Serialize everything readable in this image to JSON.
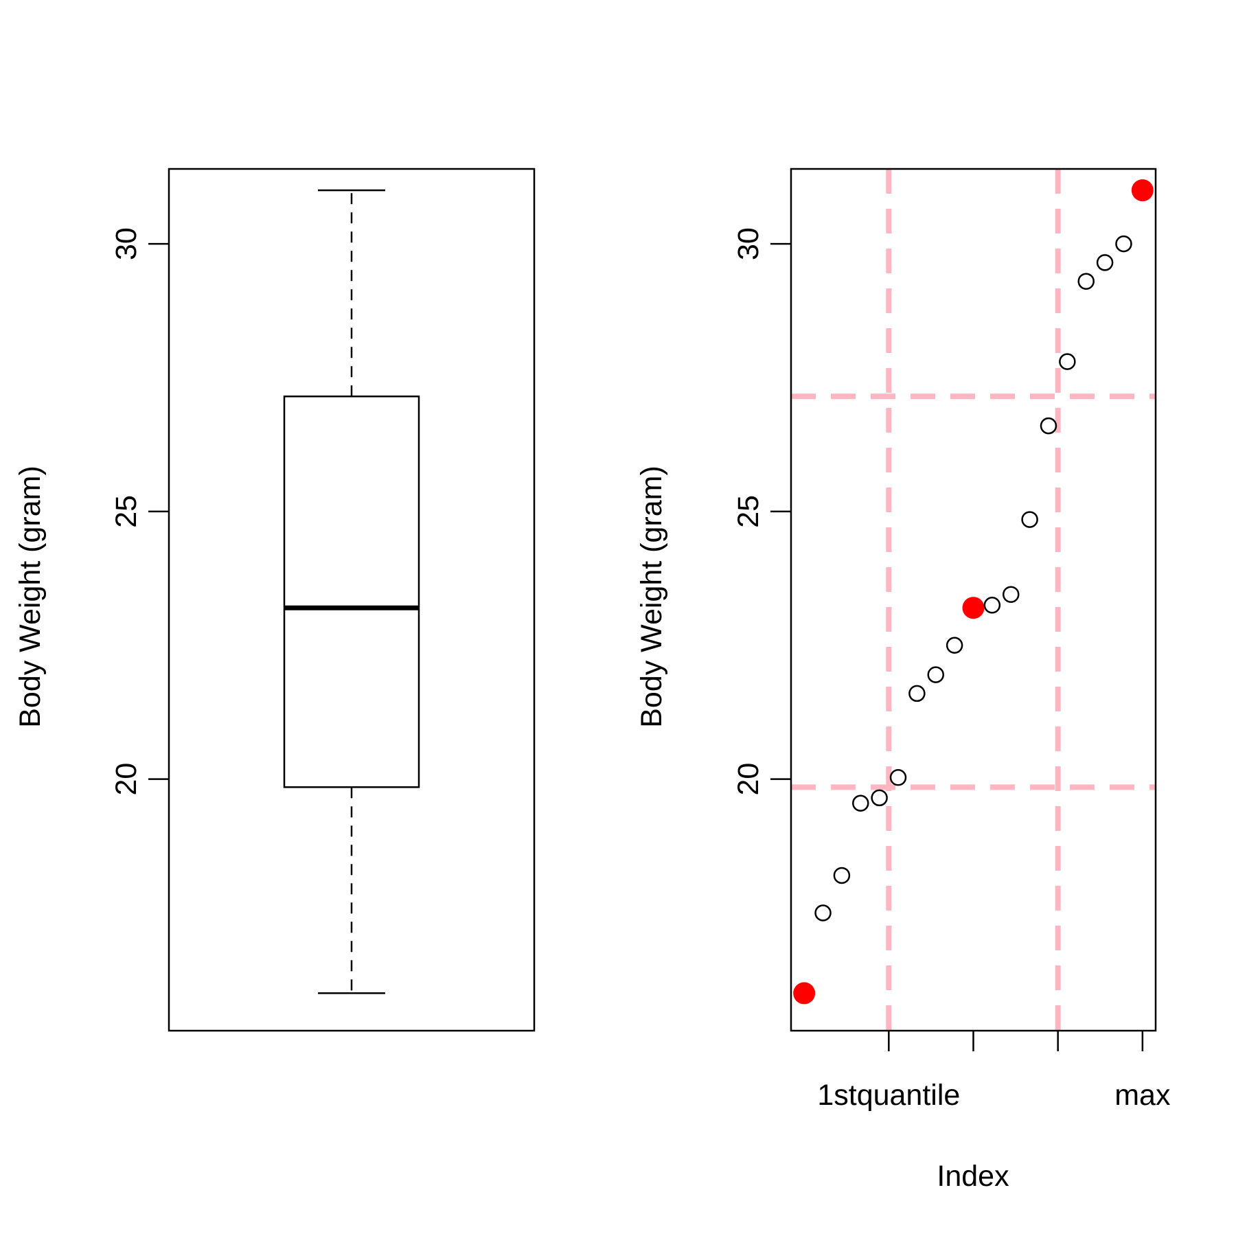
{
  "chart_data": [
    {
      "type": "box",
      "ylabel": "Body Weight (gram)",
      "ylim": [
        15.3,
        31.4
      ],
      "yticks": [
        20,
        25,
        30
      ],
      "box": {
        "min": 16.0,
        "q1": 19.85,
        "median": 23.2,
        "q3": 27.15,
        "max": 31.0
      },
      "colors": {
        "box": "#000000"
      }
    },
    {
      "type": "scatter",
      "ylabel": "Body Weight (gram)",
      "xlabel": "Index",
      "xlim": [
        0.3,
        19.7
      ],
      "ylim": [
        15.3,
        31.4
      ],
      "yticks": [
        20,
        25,
        30
      ],
      "xticks": [
        {
          "value": 5.5,
          "label": "1stquantile"
        },
        {
          "value": 10,
          "label": ""
        },
        {
          "value": 14.5,
          "label": ""
        },
        {
          "value": 19,
          "label": "max"
        }
      ],
      "points": [
        {
          "x": 1,
          "y": 16.0,
          "highlight": true
        },
        {
          "x": 2,
          "y": 17.5,
          "highlight": false
        },
        {
          "x": 3,
          "y": 18.2,
          "highlight": false
        },
        {
          "x": 4,
          "y": 19.55,
          "highlight": false
        },
        {
          "x": 5,
          "y": 19.65,
          "highlight": false
        },
        {
          "x": 6,
          "y": 20.03,
          "highlight": false
        },
        {
          "x": 7,
          "y": 21.6,
          "highlight": false
        },
        {
          "x": 8,
          "y": 21.95,
          "highlight": false
        },
        {
          "x": 9,
          "y": 22.5,
          "highlight": false
        },
        {
          "x": 10,
          "y": 23.2,
          "highlight": true
        },
        {
          "x": 11,
          "y": 23.25,
          "highlight": false
        },
        {
          "x": 12,
          "y": 23.45,
          "highlight": false
        },
        {
          "x": 13,
          "y": 24.85,
          "highlight": false
        },
        {
          "x": 14,
          "y": 26.6,
          "highlight": false
        },
        {
          "x": 15,
          "y": 27.8,
          "highlight": false
        },
        {
          "x": 16,
          "y": 29.3,
          "highlight": false
        },
        {
          "x": 17,
          "y": 29.65,
          "highlight": false
        },
        {
          "x": 18,
          "y": 30.0,
          "highlight": false
        },
        {
          "x": 19,
          "y": 31.0,
          "highlight": true
        }
      ],
      "reference_lines": {
        "vertical": [
          5.5,
          14.5
        ],
        "horizontal": [
          19.85,
          27.15
        ]
      },
      "colors": {
        "highlight": "#ff0000",
        "points": "#000000",
        "reference": "#ffb6c1"
      }
    }
  ]
}
